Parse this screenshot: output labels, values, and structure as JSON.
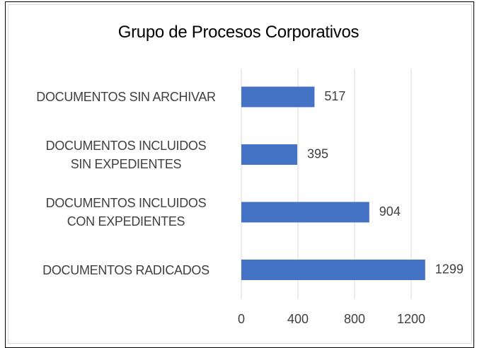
{
  "chart_data": {
    "type": "bar",
    "orientation": "horizontal",
    "title": "Grupo de Procesos Corporativos",
    "categories": [
      "DOCUMENTOS SIN ARCHIVAR",
      "DOCUMENTOS INCLUIDOS\nSIN EXPEDIENTES",
      "DOCUMENTOS INCLUIDOS\nCON EXPEDIENTES",
      "DOCUMENTOS RADICADOS"
    ],
    "values": [
      517,
      395,
      904,
      1299
    ],
    "color": "#4472c4",
    "xlim": [
      0,
      1400
    ],
    "xticks": [
      0,
      400,
      800,
      1200
    ],
    "grid": true
  }
}
